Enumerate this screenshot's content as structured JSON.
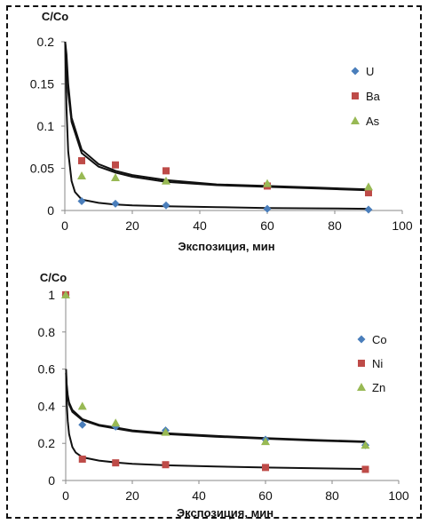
{
  "chart_data": [
    {
      "type": "scatter",
      "ylabel": "C/Co",
      "xlabel": "Экспозиция, мин",
      "xlim": [
        0,
        100
      ],
      "ylim": [
        0,
        0.2
      ],
      "xticks": [
        "0",
        "20",
        "40",
        "60",
        "80",
        "100"
      ],
      "yticks": [
        "0",
        "0.05",
        "0.1",
        "0.15",
        "0.2"
      ],
      "legend_position": "right",
      "series": [
        {
          "name": "U",
          "marker": "diamond",
          "color": "#4a7ebb",
          "x": [
            5,
            15,
            30,
            60,
            90
          ],
          "y": [
            0.011,
            0.008,
            0.006,
            0.002,
            0.001
          ]
        },
        {
          "name": "Ba",
          "marker": "square",
          "color": "#be4b48",
          "x": [
            5,
            15,
            30,
            60,
            90
          ],
          "y": [
            0.059,
            0.054,
            0.047,
            0.029,
            0.021
          ]
        },
        {
          "name": "As",
          "marker": "triangle",
          "color": "#98b954",
          "x": [
            5,
            15,
            30,
            60,
            90
          ],
          "y": [
            0.041,
            0.039,
            0.035,
            0.032,
            0.028
          ]
        }
      ],
      "trendlines": [
        {
          "x": [
            0.1,
            0.5,
            1,
            2,
            5,
            10,
            15,
            20,
            30,
            45,
            60,
            75,
            90
          ],
          "y": [
            0.2,
            0.185,
            0.15,
            0.11,
            0.072,
            0.055,
            0.047,
            0.042,
            0.036,
            0.031,
            0.029,
            0.027,
            0.025
          ]
        },
        {
          "x": [
            0.1,
            0.5,
            1,
            2,
            5,
            10,
            15,
            20,
            30,
            45,
            60,
            75,
            90
          ],
          "y": [
            0.2,
            0.175,
            0.14,
            0.105,
            0.068,
            0.052,
            0.045,
            0.04,
            0.034,
            0.03,
            0.028,
            0.026,
            0.024
          ]
        },
        {
          "x": [
            0.1,
            0.5,
            1,
            2,
            3,
            5,
            10,
            15,
            20,
            30,
            45,
            60,
            75,
            90
          ],
          "y": [
            0.2,
            0.12,
            0.07,
            0.035,
            0.022,
            0.013,
            0.009,
            0.007,
            0.006,
            0.005,
            0.004,
            0.003,
            0.0025,
            0.002
          ]
        }
      ]
    },
    {
      "type": "scatter",
      "ylabel": "C/Co",
      "xlabel": "Экспозиция, мин",
      "xlim": [
        0,
        100
      ],
      "ylim": [
        0,
        1
      ],
      "xticks": [
        "0",
        "20",
        "40",
        "60",
        "80",
        "100"
      ],
      "yticks": [
        "0",
        "0.2",
        "0.4",
        "0.6",
        "0.8",
        "1"
      ],
      "legend_position": "right",
      "series": [
        {
          "name": "Co",
          "marker": "diamond",
          "color": "#4a7ebb",
          "x": [
            0,
            5,
            15,
            30,
            60,
            90
          ],
          "y": [
            1.0,
            0.3,
            0.29,
            0.27,
            0.22,
            0.19
          ]
        },
        {
          "name": "Ni",
          "marker": "square",
          "color": "#be4b48",
          "x": [
            0,
            5,
            15,
            30,
            60,
            90
          ],
          "y": [
            1.0,
            0.115,
            0.095,
            0.085,
            0.07,
            0.06
          ]
        },
        {
          "name": "Zn",
          "marker": "triangle",
          "color": "#98b954",
          "x": [
            0,
            5,
            15,
            30,
            60,
            90
          ],
          "y": [
            1.0,
            0.4,
            0.31,
            0.26,
            0.21,
            0.19
          ]
        }
      ],
      "trendlines": [
        {
          "x": [
            0.1,
            0.3,
            0.6,
            1,
            2,
            5,
            10,
            15,
            20,
            30,
            45,
            60,
            75,
            90
          ],
          "y": [
            0.6,
            0.52,
            0.46,
            0.42,
            0.38,
            0.33,
            0.3,
            0.285,
            0.27,
            0.255,
            0.24,
            0.228,
            0.218,
            0.21
          ]
        },
        {
          "x": [
            0.1,
            0.3,
            0.6,
            1,
            2,
            5,
            10,
            15,
            20,
            30,
            45,
            60,
            75,
            90
          ],
          "y": [
            0.58,
            0.5,
            0.45,
            0.41,
            0.37,
            0.325,
            0.295,
            0.28,
            0.265,
            0.25,
            0.236,
            0.225,
            0.215,
            0.207
          ]
        },
        {
          "x": [
            0.1,
            0.3,
            0.6,
            1,
            2,
            3,
            5,
            10,
            15,
            20,
            30,
            45,
            60,
            75,
            90
          ],
          "y": [
            0.58,
            0.42,
            0.32,
            0.25,
            0.18,
            0.15,
            0.125,
            0.107,
            0.097,
            0.09,
            0.082,
            0.075,
            0.07,
            0.066,
            0.062
          ]
        }
      ]
    }
  ]
}
